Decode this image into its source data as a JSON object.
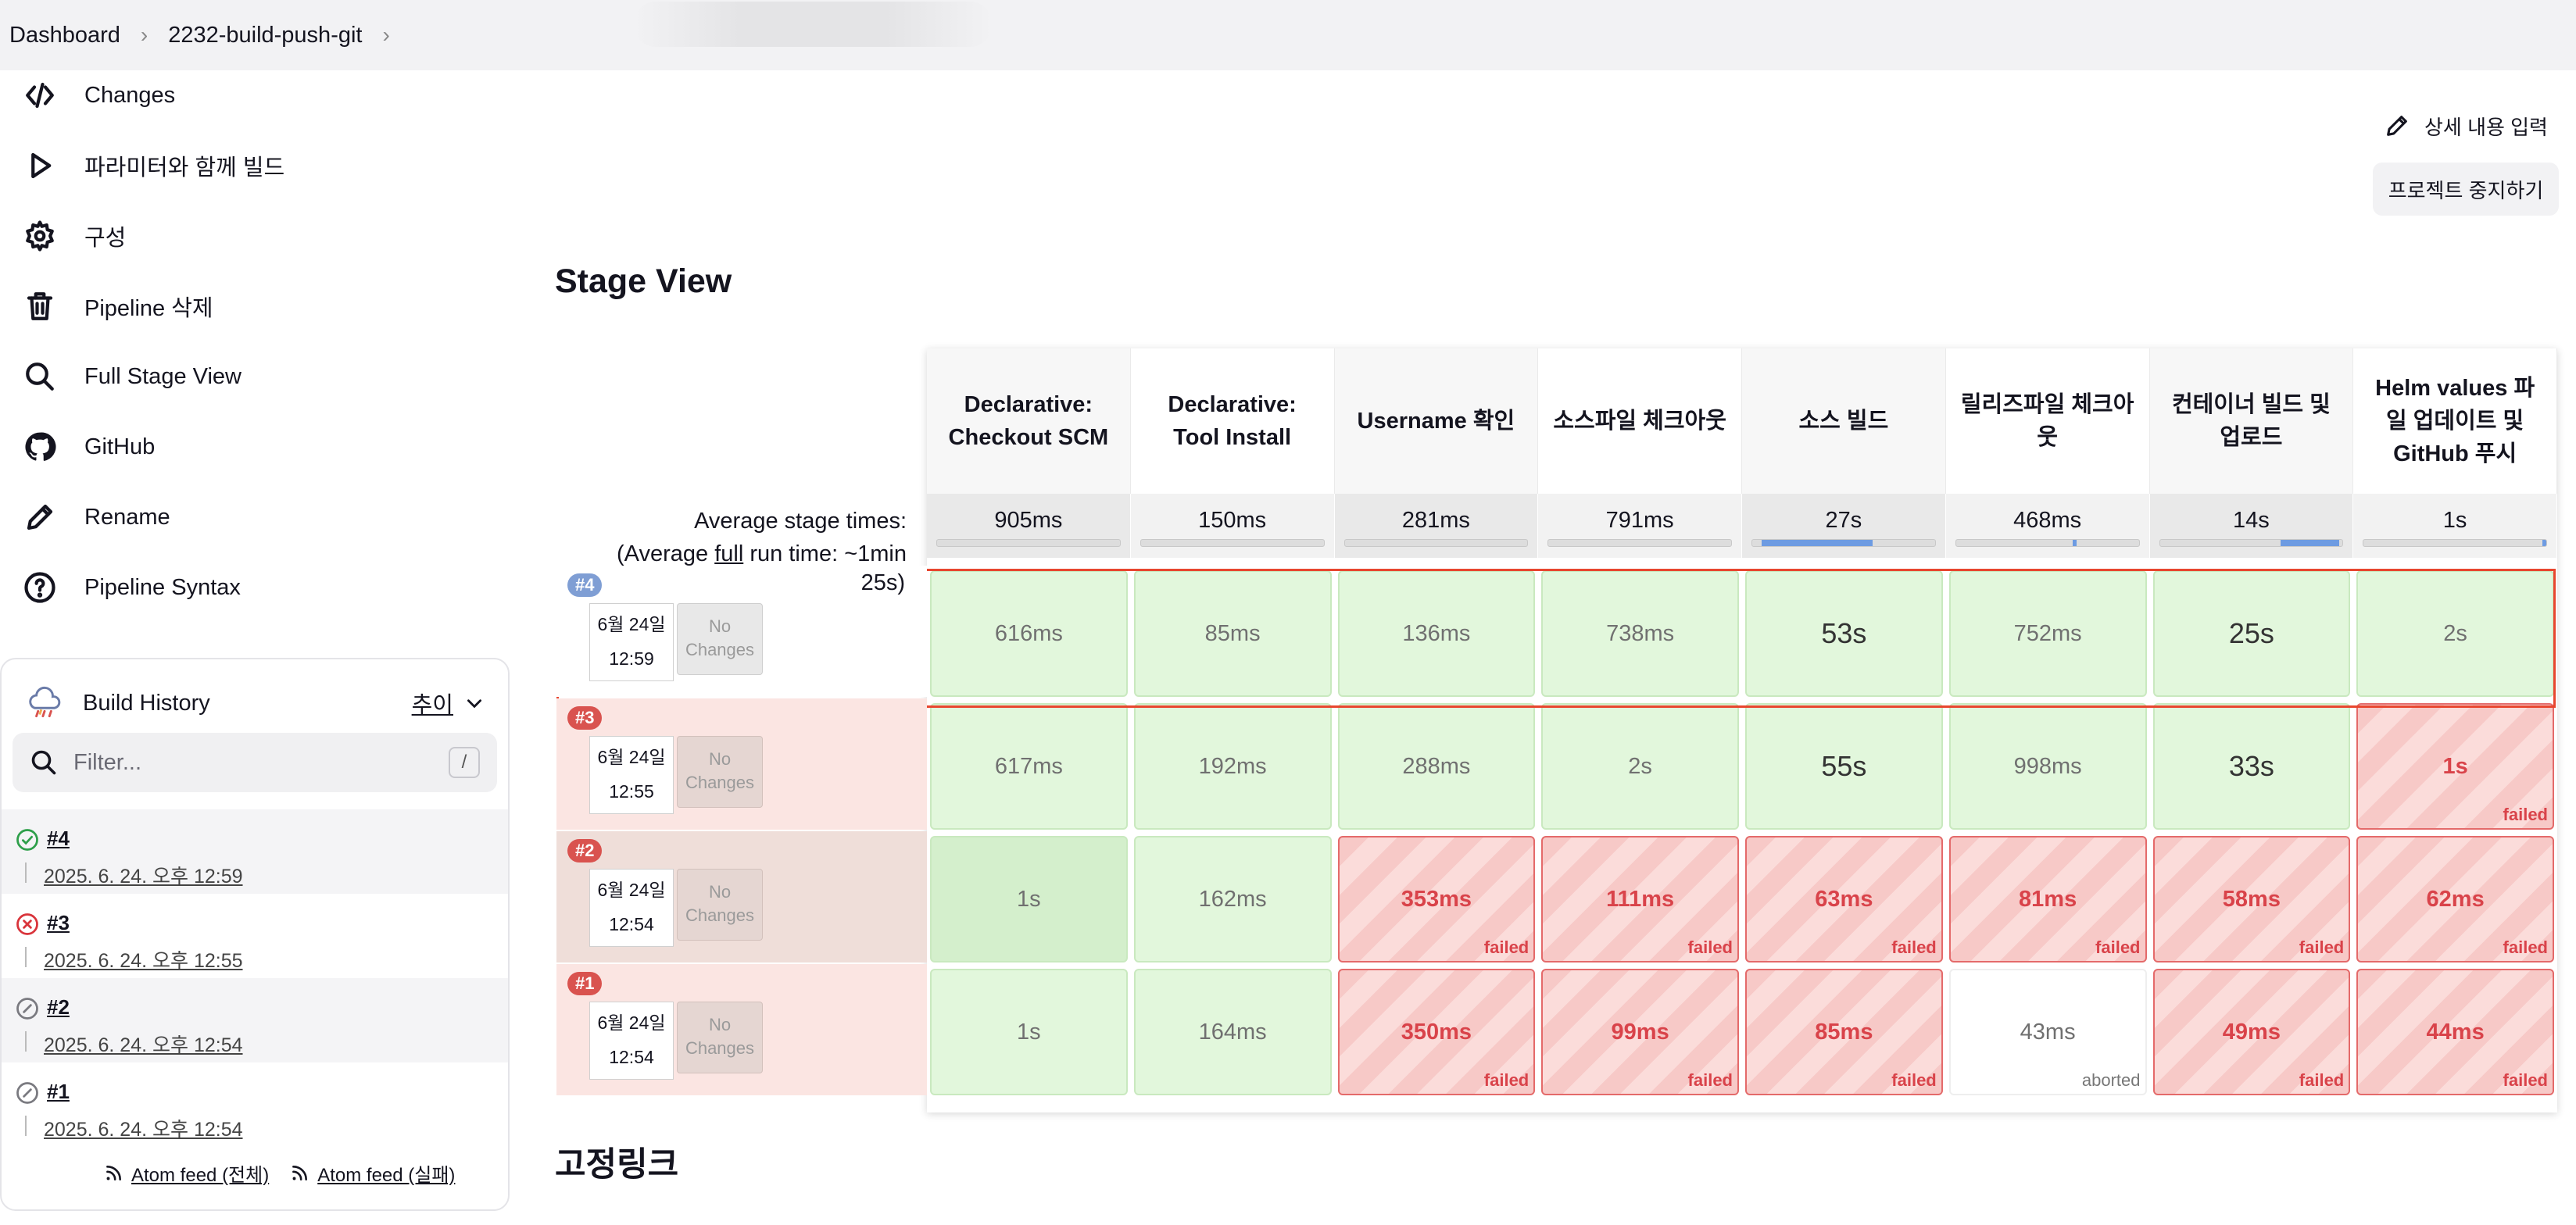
{
  "breadcrumb": {
    "dashboard": "Dashboard",
    "job": "2232-build-push-git"
  },
  "sidebar": {
    "items": [
      {
        "label": "Changes"
      },
      {
        "label": "파라미터와 함께 빌드"
      },
      {
        "label": "구성"
      },
      {
        "label": "Pipeline 삭제"
      },
      {
        "label": "Full Stage View"
      },
      {
        "label": "GitHub"
      },
      {
        "label": "Rename"
      },
      {
        "label": "Pipeline Syntax"
      }
    ]
  },
  "build_history": {
    "title": "Build History",
    "trend": "추이",
    "filter_placeholder": "Filter...",
    "filter_shortcut": "/",
    "builds": [
      {
        "num": "#4",
        "date": "2025. 6. 24. 오후 12:59",
        "status": "success"
      },
      {
        "num": "#3",
        "date": "2025. 6. 24. 오후 12:55",
        "status": "failed"
      },
      {
        "num": "#2",
        "date": "2025. 6. 24. 오후 12:54",
        "status": "aborted"
      },
      {
        "num": "#1",
        "date": "2025. 6. 24. 오후 12:54",
        "status": "aborted"
      }
    ],
    "feeds": {
      "all": "Atom feed (전체)",
      "failed": "Atom feed (실패)"
    }
  },
  "actions": {
    "edit_description": "상세 내용 입력",
    "disable_project": "프로젝트 중지하기"
  },
  "stage_view": {
    "title": "Stage View",
    "avg_label_line1": "Average stage times:",
    "avg_label_pre": "(Average ",
    "avg_label_full": "full",
    "avg_label_mid": " run time: ~1min",
    "avg_label_tail": "25s)",
    "stages": [
      {
        "name": "Declarative: Checkout SCM",
        "avg": "905ms",
        "fill_start": 0.0,
        "fill_end": 0.0
      },
      {
        "name": "Declarative: Tool Install",
        "avg": "150ms",
        "fill_start": 0.0,
        "fill_end": 0.0
      },
      {
        "name": "Username 확인",
        "avg": "281ms",
        "fill_start": 0.0,
        "fill_end": 0.0
      },
      {
        "name": "소스파일 체크아웃",
        "avg": "791ms",
        "fill_start": 0.0,
        "fill_end": 0.0
      },
      {
        "name": "소스 빌드",
        "avg": "27s",
        "fill_start": 0.05,
        "fill_end": 0.66
      },
      {
        "name": "릴리즈파일 체크아웃",
        "avg": "468ms",
        "fill_start": 0.64,
        "fill_end": 0.66
      },
      {
        "name": "컨테이너 빌드 및 업로드",
        "avg": "14s",
        "fill_start": 0.66,
        "fill_end": 0.98
      },
      {
        "name": "Helm values 파일 업데이트 및 GitHub 푸시",
        "avg": "1s",
        "fill_start": 0.98,
        "fill_end": 1.0
      }
    ],
    "no_changes": "No Changes",
    "failed_label": "failed",
    "aborted_label": "aborted",
    "runs": [
      {
        "badge": "#4",
        "date": "6월 24일",
        "time": "12:59",
        "cells": [
          {
            "value": "616ms",
            "status": "ok"
          },
          {
            "value": "85ms",
            "status": "ok"
          },
          {
            "value": "136ms",
            "status": "ok"
          },
          {
            "value": "738ms",
            "status": "ok"
          },
          {
            "value": "53s",
            "status": "ok"
          },
          {
            "value": "752ms",
            "status": "ok"
          },
          {
            "value": "25s",
            "status": "ok"
          },
          {
            "value": "2s",
            "status": "ok"
          }
        ]
      },
      {
        "badge": "#3",
        "date": "6월 24일",
        "time": "12:55",
        "cells": [
          {
            "value": "617ms",
            "status": "ok"
          },
          {
            "value": "192ms",
            "status": "ok"
          },
          {
            "value": "288ms",
            "status": "ok"
          },
          {
            "value": "2s",
            "status": "ok"
          },
          {
            "value": "55s",
            "status": "ok"
          },
          {
            "value": "998ms",
            "status": "ok"
          },
          {
            "value": "33s",
            "status": "ok"
          },
          {
            "value": "1s",
            "status": "failed"
          }
        ]
      },
      {
        "badge": "#2",
        "date": "6월 24일",
        "time": "12:54",
        "cells": [
          {
            "value": "1s",
            "status": "ok"
          },
          {
            "value": "162ms",
            "status": "ok"
          },
          {
            "value": "353ms",
            "status": "failed"
          },
          {
            "value": "111ms",
            "status": "failed"
          },
          {
            "value": "63ms",
            "status": "failed"
          },
          {
            "value": "81ms",
            "status": "failed"
          },
          {
            "value": "58ms",
            "status": "failed"
          },
          {
            "value": "62ms",
            "status": "failed"
          }
        ]
      },
      {
        "badge": "#1",
        "date": "6월 24일",
        "time": "12:54",
        "cells": [
          {
            "value": "1s",
            "status": "ok"
          },
          {
            "value": "164ms",
            "status": "ok"
          },
          {
            "value": "350ms",
            "status": "failed"
          },
          {
            "value": "99ms",
            "status": "failed"
          },
          {
            "value": "85ms",
            "status": "failed"
          },
          {
            "value": "43ms",
            "status": "aborted"
          },
          {
            "value": "49ms",
            "status": "failed"
          },
          {
            "value": "44ms",
            "status": "failed"
          }
        ]
      }
    ]
  },
  "permalinks": {
    "title": "고정링크"
  },
  "colors": {
    "success": "#e2f7dc",
    "failed": "#d9434a",
    "highlight": "#e8462f",
    "badge_blue": "#7f9ed4",
    "badge_red": "#d9534f"
  }
}
